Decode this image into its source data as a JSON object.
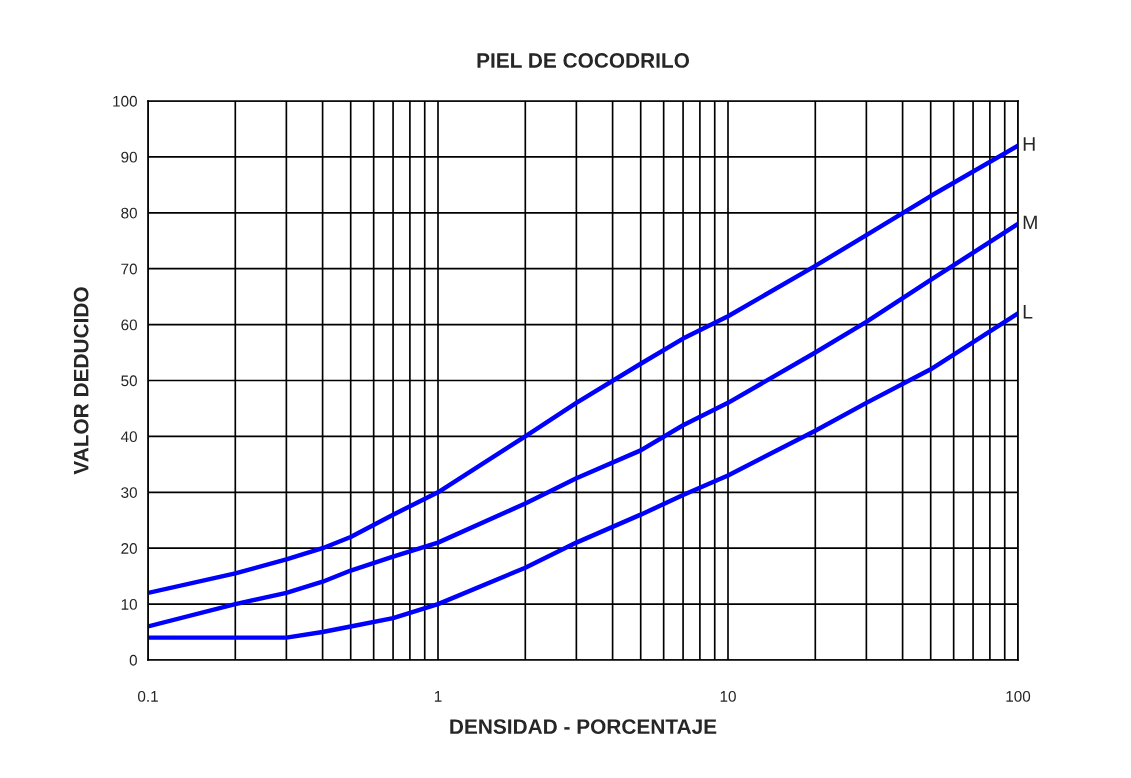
{
  "chart_data": {
    "type": "line",
    "title": "PIEL DE COCODRILO",
    "xlabel": "DENSIDAD - PORCENTAJE",
    "ylabel": "VALOR DEDUCIDO",
    "log": "x",
    "grid": true,
    "marker": "none",
    "line_style": "solid",
    "xlim": [
      0.1,
      100
    ],
    "ylim": [
      0,
      100
    ],
    "xticks": [
      {
        "value": 0.1,
        "label": "0.1"
      },
      {
        "value": 0.2,
        "label": null
      },
      {
        "value": 0.3,
        "label": null
      },
      {
        "value": 0.4,
        "label": null
      },
      {
        "value": 0.5,
        "label": null
      },
      {
        "value": 0.6,
        "label": null
      },
      {
        "value": 0.7,
        "label": null
      },
      {
        "value": 0.8,
        "label": null
      },
      {
        "value": 0.9,
        "label": null
      },
      1,
      {
        "value": 2,
        "label": null
      },
      {
        "value": 3,
        "label": null
      },
      {
        "value": 4,
        "label": null
      },
      {
        "value": 5,
        "label": null
      },
      {
        "value": 6,
        "label": null
      },
      {
        "value": 7,
        "label": null
      },
      {
        "value": 8,
        "label": null
      },
      {
        "value": 9,
        "label": null
      },
      10,
      {
        "value": 20,
        "label": null
      },
      {
        "value": 30,
        "label": null
      },
      {
        "value": 40,
        "label": null
      },
      {
        "value": 50,
        "label": null
      },
      {
        "value": 60,
        "label": null
      },
      {
        "value": 70,
        "label": null
      },
      {
        "value": 80,
        "label": null
      },
      {
        "value": 90,
        "label": null
      },
      100
    ],
    "yticks": [
      0,
      10,
      20,
      30,
      40,
      50,
      60,
      70,
      80,
      90,
      100
    ],
    "x": [
      0.1,
      0.2,
      0.3,
      0.4,
      0.5,
      0.7,
      1,
      2,
      3,
      5,
      7,
      10,
      20,
      30,
      50,
      100
    ],
    "series": [
      {
        "name": "H",
        "color": "#0000ff",
        "values": [
          12,
          15.5,
          18,
          20,
          22,
          26,
          30,
          40,
          46,
          53,
          57.5,
          61.5,
          70.5,
          76,
          83,
          92
        ]
      },
      {
        "name": "M",
        "color": "#0000ff",
        "values": [
          6,
          10,
          12,
          14,
          16,
          18.5,
          21,
          28,
          32.5,
          37.5,
          42,
          46,
          55,
          60.5,
          68,
          78
        ]
      },
      {
        "name": "L",
        "color": "#0000ff",
        "values": [
          4,
          4,
          4,
          5,
          6,
          7.5,
          10,
          16.5,
          21,
          26,
          29.5,
          33,
          41,
          46,
          52,
          62
        ]
      }
    ]
  }
}
